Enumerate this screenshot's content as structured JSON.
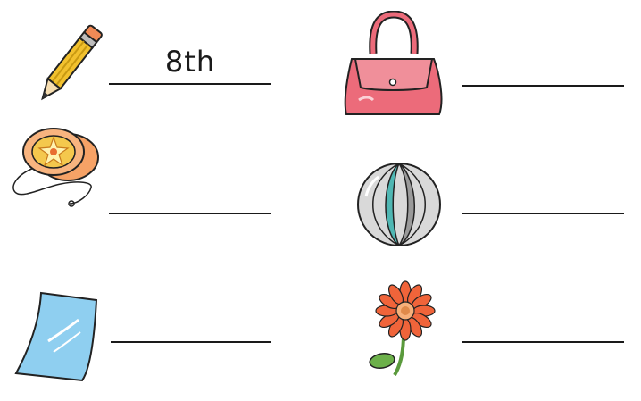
{
  "worksheet": {
    "items": [
      {
        "picture": "pencil",
        "answer": "8th"
      },
      {
        "picture": "handbag",
        "answer": ""
      },
      {
        "picture": "yo-yo",
        "answer": ""
      },
      {
        "picture": "ball",
        "answer": ""
      },
      {
        "picture": "paper-sheet",
        "answer": ""
      },
      {
        "picture": "flower",
        "answer": ""
      }
    ]
  },
  "colors": {
    "pencil_body": "#f2c12e",
    "handbag": "#ec6b7a",
    "yoyo": "#f6a266",
    "ball_teal": "#4fb7b3",
    "paper": "#8fcff0",
    "flower_petal": "#f0643a",
    "leaf": "#6cb04a"
  }
}
